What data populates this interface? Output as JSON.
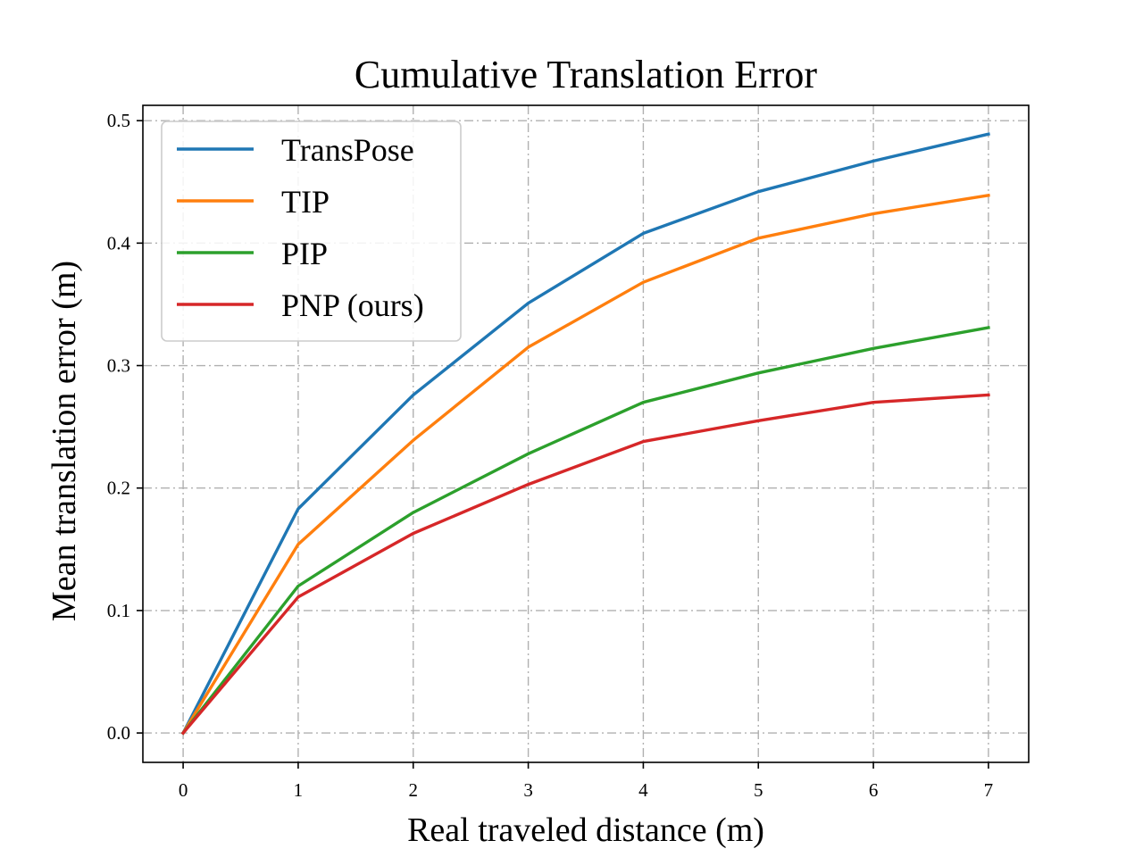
{
  "chart_data": {
    "type": "line",
    "title": "Cumulative Translation Error",
    "xlabel": "Real traveled distance (m)",
    "ylabel": "Mean translation error (m)",
    "x": [
      0,
      1,
      2,
      3,
      4,
      5,
      6,
      7
    ],
    "xlim": [
      -0.35,
      7.35
    ],
    "ylim": [
      -0.024,
      0.5125
    ],
    "xticks": [
      0,
      1,
      2,
      3,
      4,
      5,
      6,
      7
    ],
    "yticks": [
      0.0,
      0.1,
      0.2,
      0.3,
      0.4,
      0.5
    ],
    "ytick_labels": [
      "0.0",
      "0.1",
      "0.2",
      "0.3",
      "0.4",
      "0.5"
    ],
    "grid": true,
    "legend_position": "top-left",
    "series": [
      {
        "name": "TransPose",
        "color": "#1f77b4",
        "values": [
          0.0,
          0.183,
          0.276,
          0.351,
          0.408,
          0.442,
          0.467,
          0.489
        ]
      },
      {
        "name": "TIP",
        "color": "#ff7f0e",
        "values": [
          0.0,
          0.154,
          0.239,
          0.315,
          0.368,
          0.404,
          0.424,
          0.439
        ]
      },
      {
        "name": "PIP",
        "color": "#2ca02c",
        "values": [
          0.0,
          0.12,
          0.18,
          0.228,
          0.27,
          0.294,
          0.314,
          0.331
        ]
      },
      {
        "name": "PNP (ours)",
        "color": "#d62728",
        "values": [
          0.0,
          0.111,
          0.163,
          0.203,
          0.238,
          0.255,
          0.27,
          0.276
        ]
      }
    ]
  }
}
